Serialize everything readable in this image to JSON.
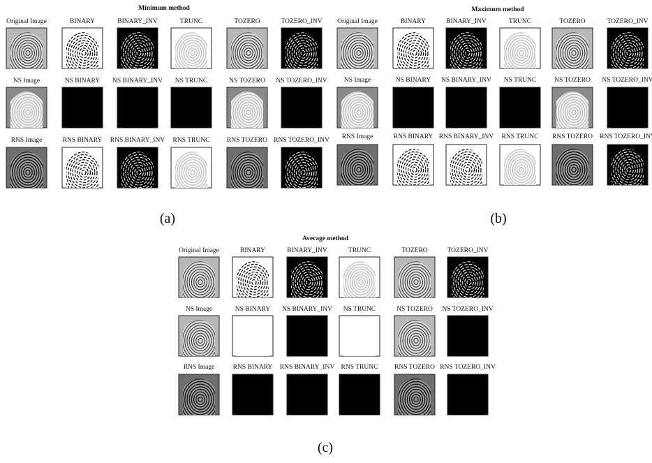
{
  "panels": [
    {
      "title": "Minimum method",
      "caption": "(a)",
      "rows": [
        [
          "Original Image",
          "BINARY",
          "BINARY_INV",
          "TRUNC",
          "TOZERO",
          "TOZERO_INV"
        ],
        [
          "NS Image",
          "NS BINARY",
          "NS BINARY_INV",
          "NS TRUNC",
          "NS TOZERO",
          "NS TOZERO_INV"
        ],
        [
          "RNS Image",
          "RNS BINARY",
          "RNS BINARY_INV",
          "RNS TRUNC",
          "RNS TOZERO",
          "RNS TOZERO_INV"
        ]
      ]
    },
    {
      "title": "Maximum method",
      "caption": "(b)",
      "rows": [
        [
          "Original Image",
          "BINARY",
          "BINARY_INV",
          "TRUNC",
          "TOZERO",
          "TOZERO_INV"
        ],
        [
          "NS Image",
          "NS BINARY",
          "NS BINARY_INV",
          "NS TRUNC",
          "NS TOZERO",
          "NS TOZERO_INV"
        ],
        [
          "RNS Image",
          "RNS BINARY",
          "RNS BINARY_INV",
          "RNS TRUNC",
          "RNS TOZERO",
          "RNS TOZERO_INV"
        ]
      ]
    },
    {
      "title": "Average method",
      "caption": "(c)",
      "rows": [
        [
          "Original Image",
          "BINARY",
          "BINARY_INV",
          "TRUNC",
          "TOZERO",
          "TOZERO_INV"
        ],
        [
          "NS Image",
          "NS BINARY",
          "NS BINARY_INV",
          "NS TRUNC",
          "NS TOZERO",
          "NS TOZERO_INV"
        ],
        [
          "RNS Image",
          "RNS BINARY",
          "RNS BINARY_INV",
          "RNS TRUNC",
          "RNS TOZERO",
          "RNS TOZERO_INV"
        ]
      ]
    }
  ]
}
